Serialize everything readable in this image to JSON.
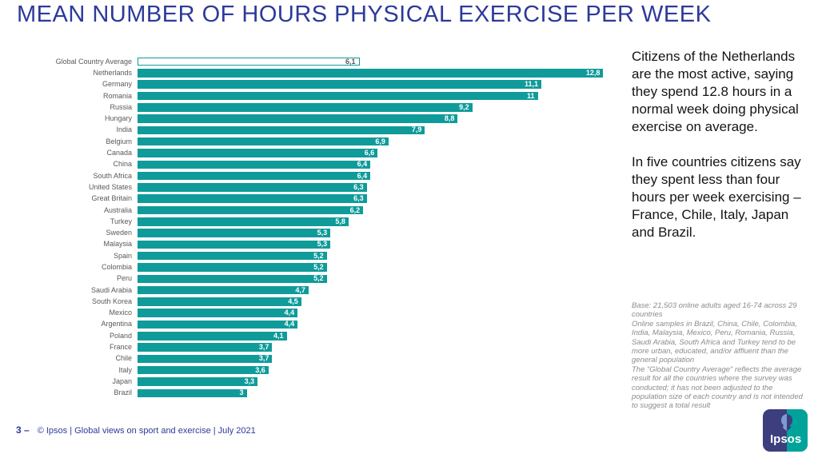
{
  "title": "MEAN NUMBER OF HOURS PHYSICAL EXERCISE PER WEEK",
  "colors": {
    "title_blue": "#2d3a9a",
    "bar_teal": "#0f9b9a",
    "label_gray": "#595959",
    "footnote_gray": "#8c8c8c",
    "logo_navy": "#3d3e7d",
    "logo_teal": "#00a39a"
  },
  "chart_data": {
    "type": "bar",
    "orientation": "horizontal",
    "title": "MEAN NUMBER OF HOURS PHYSICAL EXERCISE PER WEEK",
    "xlabel": "",
    "ylabel": "",
    "xlim": [
      0,
      13.2
    ],
    "grid": false,
    "value_label_position": "inside-end",
    "decimal_separator": "comma",
    "highlight_category": "Global Country Average",
    "highlight_style": "white-fill-teal-outline",
    "categories": [
      "Global Country Average",
      "Netherlands",
      "Germany",
      "Romania",
      "Russia",
      "Hungary",
      "India",
      "Belgium",
      "Canada",
      "China",
      "South Africa",
      "United States",
      "Great Britain",
      "Australia",
      "Turkey",
      "Sweden",
      "Malaysia",
      "Spain",
      "Colombia",
      "Peru",
      "Saudi Arabia",
      "South Korea",
      "Mexico",
      "Argentina",
      "Poland",
      "France",
      "Chile",
      "Italy",
      "Japan",
      "Brazil"
    ],
    "values": [
      6.1,
      12.8,
      11.1,
      11,
      9.2,
      8.8,
      7.9,
      6.9,
      6.6,
      6.4,
      6.4,
      6.3,
      6.3,
      6.2,
      5.8,
      5.3,
      5.3,
      5.2,
      5.2,
      5.2,
      4.7,
      4.5,
      4.4,
      4.4,
      4.1,
      3.7,
      3.7,
      3.6,
      3.3,
      3
    ],
    "value_labels": [
      "6,1",
      "12,8",
      "11,1",
      "11",
      "9,2",
      "8,8",
      "7,9",
      "6,9",
      "6,6",
      "6,4",
      "6,4",
      "6,3",
      "6,3",
      "6,2",
      "5,8",
      "5,3",
      "5,3",
      "5,2",
      "5,2",
      "5,2",
      "4,7",
      "4,5",
      "4,4",
      "4,4",
      "4,1",
      "3,7",
      "3,7",
      "3,6",
      "3,3",
      "3"
    ]
  },
  "commentary": {
    "para1": "Citizens of the Netherlands are the most active, saying they spend 12.8 hours in a normal week doing physical exercise on average.",
    "para2": "In five countries citizens say they spent less than four hours per week exercising – France, Chile, Italy, Japan and Brazil."
  },
  "footnotes": [
    "Base: 21,503 online adults aged 16-74 across 29 countries",
    "Online samples in Brazil, China, Chile, Colombia, India, Malaysia, Mexico, Peru, Romania, Russia, Saudi Arabia, South Africa and Turkey tend to be more urban, educated, and/or affluent than the general population",
    "The “Global Country Average” reflects the average result for all the countries where the survey was conducted; it has not been adjusted to the population size of each country and is not intended to suggest a total result"
  ],
  "footer": {
    "page_number": "3 –",
    "credit": "© Ipsos | Global views on sport and exercise | July 2021"
  },
  "logo": {
    "text": "Ipsos"
  }
}
